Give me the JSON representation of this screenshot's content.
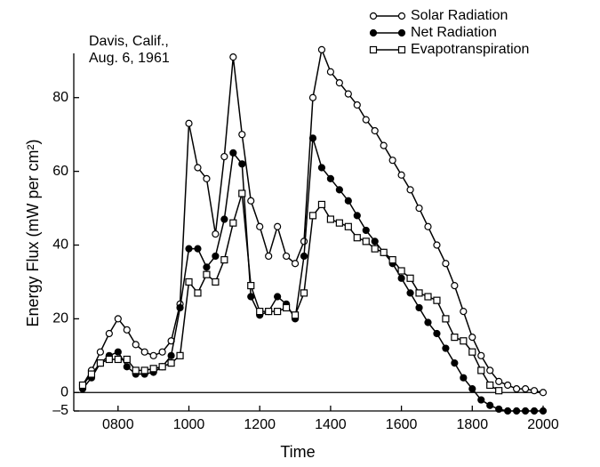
{
  "chart_data": {
    "type": "line",
    "annotation": [
      "Davis, Calif.,",
      "Aug. 6, 1961"
    ],
    "xlabel": "Time",
    "ylabel": "Energy Flux (mW per cm²)",
    "x": [
      700,
      715,
      730,
      745,
      800,
      815,
      830,
      845,
      900,
      915,
      930,
      945,
      1000,
      1015,
      1030,
      1045,
      1100,
      1115,
      1130,
      1145,
      1200,
      1215,
      1230,
      1245,
      1300,
      1315,
      1330,
      1345,
      1400,
      1415,
      1430,
      1445,
      1500,
      1515,
      1530,
      1545,
      1600,
      1615,
      1630,
      1645,
      1700,
      1715,
      1730,
      1745,
      1800,
      1815,
      1830,
      1845,
      1900,
      1915,
      1930,
      1945,
      2000
    ],
    "series": [
      {
        "name": "Solar Radiation",
        "color": "#000000",
        "marker": "open-circle",
        "values": [
          2,
          6,
          11,
          16,
          20,
          17,
          13,
          11,
          10,
          11,
          14,
          24,
          73,
          61,
          58,
          43,
          64,
          91,
          70,
          52,
          45,
          37,
          45,
          37,
          35,
          41,
          80,
          93,
          87,
          84,
          81,
          78,
          74,
          71,
          67,
          63,
          59,
          55,
          50,
          45,
          40,
          35,
          29,
          22,
          15,
          10,
          6,
          3,
          2,
          1,
          1,
          0.5,
          0
        ]
      },
      {
        "name": "Net Radiation",
        "color": "#000000",
        "marker": "filled-circle",
        "values": [
          1,
          4,
          8,
          10,
          11,
          7,
          5,
          5,
          5.5,
          7,
          10,
          23,
          39,
          39,
          34,
          37,
          47,
          65,
          62,
          26,
          21,
          22,
          26,
          24,
          20,
          37,
          69,
          61,
          58,
          55,
          52,
          48,
          44,
          41,
          38,
          35,
          31,
          27,
          23,
          19,
          16,
          12,
          8,
          4,
          1,
          -2,
          -3.5,
          -4.5,
          -5,
          -5,
          -5,
          -5,
          -5
        ]
      },
      {
        "name": "Evapotranspiration",
        "color": "#000000",
        "marker": "open-square",
        "values": [
          2,
          5,
          8,
          9,
          9,
          9,
          6,
          6,
          6.5,
          7,
          8,
          10,
          30,
          27,
          32,
          30,
          36,
          46,
          54,
          29,
          22,
          22,
          22,
          23,
          21,
          27,
          48,
          51,
          47,
          46,
          45,
          42,
          41,
          39,
          38,
          36,
          33,
          31,
          27,
          26,
          25,
          20,
          15,
          14,
          11,
          6,
          2,
          0.5,
          null,
          null,
          null,
          null,
          null
        ]
      }
    ],
    "xlim": [
      645,
      2000
    ],
    "xticks": [
      {
        "value": 800,
        "label": "0800"
      },
      1000,
      1200,
      1400,
      1600,
      1800,
      2000
    ],
    "ylim": [
      -5,
      92
    ],
    "yticks": [
      {
        "value": -5,
        "label": "–5"
      },
      0,
      20,
      40,
      60,
      80
    ],
    "legend": "upper right"
  }
}
